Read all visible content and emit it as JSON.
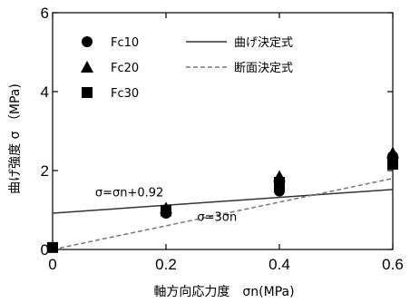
{
  "chart_data": {
    "type": "scatter",
    "xlabel": "軸方向応力度　σn(MPa)",
    "ylabel": "曲げ強度 σ （MPa)",
    "xlim": [
      0,
      0.6
    ],
    "ylim": [
      0,
      6
    ],
    "x_ticks": [
      "0",
      "0.2",
      "0.4",
      "0.6"
    ],
    "y_ticks": [
      "0",
      "2",
      "4",
      "6"
    ],
    "x_tick_values": [
      0,
      0.2,
      0.4,
      0.6
    ],
    "y_tick_values": [
      0,
      2,
      4,
      6
    ],
    "grid": false,
    "legend_position": "top-left",
    "series": [
      {
        "name": "Fc10",
        "marker": "circle",
        "color": "#000000",
        "points": [
          [
            0.2,
            0.92
          ],
          [
            0.2,
            1.0
          ],
          [
            0.4,
            1.48
          ],
          [
            0.4,
            1.56
          ],
          [
            0.6,
            2.28
          ],
          [
            0.6,
            2.36
          ]
        ]
      },
      {
        "name": "Fc20",
        "marker": "triangle",
        "color": "#000000",
        "points": [
          [
            0.2,
            1.05
          ],
          [
            0.4,
            1.85
          ],
          [
            0.6,
            2.45
          ]
        ]
      },
      {
        "name": "Fc30",
        "marker": "square",
        "color": "#000000",
        "points": [
          [
            0,
            0.05
          ],
          [
            0.2,
            0.98
          ],
          [
            0.4,
            1.62
          ],
          [
            0.4,
            1.7
          ],
          [
            0.6,
            2.16
          ],
          [
            0.6,
            2.22
          ]
        ]
      }
    ],
    "lines": [
      {
        "name": "曲げ決定式",
        "style": "solid",
        "color": "#333333",
        "x": [
          0,
          0.6
        ],
        "y": [
          0.92,
          1.52
        ]
      },
      {
        "name": "断面決定式",
        "style": "dashed",
        "color": "#777777",
        "x": [
          0,
          0.6
        ],
        "y": [
          0,
          1.8
        ]
      }
    ],
    "annotations": [
      {
        "text": "σ=σn+0.92",
        "x": 0.075,
        "y": 1.35
      },
      {
        "text": "σ=3σn",
        "x": 0.255,
        "y": 0.72
      }
    ]
  }
}
